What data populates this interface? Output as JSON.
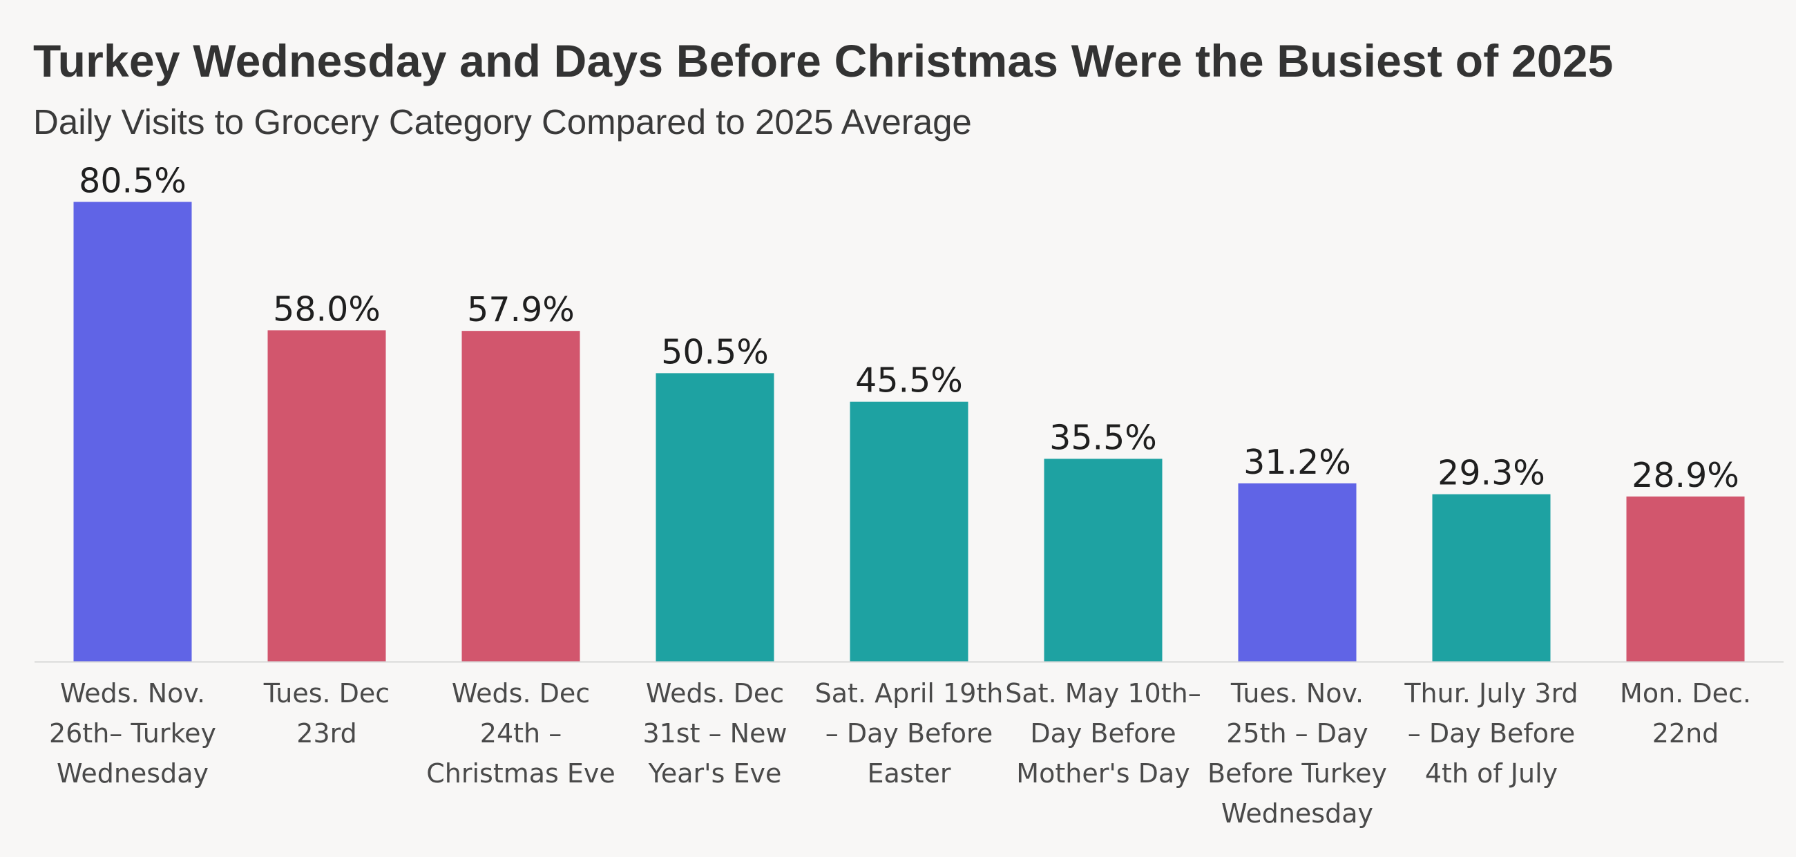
{
  "title": "Turkey Wednesday and Days Before Christmas Were the Busiest of 2025",
  "subtitle": "Daily Visits to Grocery Category Compared to 2025 Average",
  "colors": {
    "background": "#f8f7f6",
    "purple": "#6064e6",
    "red": "#d2566d",
    "teal": "#1ea2a2",
    "axis": "#d7d7d7"
  },
  "chart_data": {
    "type": "bar",
    "title": "Turkey Wednesday and Days Before Christmas Were the Busiest of 2025",
    "subtitle": "Daily Visits to Grocery Category Compared to 2025 Average",
    "xlabel": "",
    "ylabel": "",
    "ylim": [
      0,
      100
    ],
    "grid": false,
    "categories": [
      [
        "Weds. Nov.",
        "26th– Turkey",
        "Wednesday"
      ],
      [
        "Tues. Dec",
        "23rd"
      ],
      [
        "Weds. Dec",
        "24th –",
        "Christmas Eve"
      ],
      [
        "Weds. Dec",
        "31st – New",
        "Year's Eve"
      ],
      [
        "Sat. April 19th",
        "– Day Before",
        "Easter"
      ],
      [
        "Sat. May 10th–",
        "Day Before",
        "Mother's Day"
      ],
      [
        "Tues. Nov.",
        "25th – Day",
        "Before Turkey",
        "Wednesday"
      ],
      [
        "Thur. July 3rd",
        "– Day Before",
        "4th of July"
      ],
      [
        "Mon. Dec.",
        "22nd"
      ]
    ],
    "values": [
      80.5,
      58.0,
      57.9,
      50.5,
      45.5,
      35.5,
      31.2,
      29.3,
      28.9
    ],
    "data_labels": [
      "80.5%",
      "58.0%",
      "57.9%",
      "50.5%",
      "45.5%",
      "35.5%",
      "31.2%",
      "29.3%",
      "28.9%"
    ],
    "bar_colors": [
      "#6064e6",
      "#d2566d",
      "#d2566d",
      "#1ea2a2",
      "#1ea2a2",
      "#1ea2a2",
      "#6064e6",
      "#1ea2a2",
      "#d2566d"
    ]
  }
}
